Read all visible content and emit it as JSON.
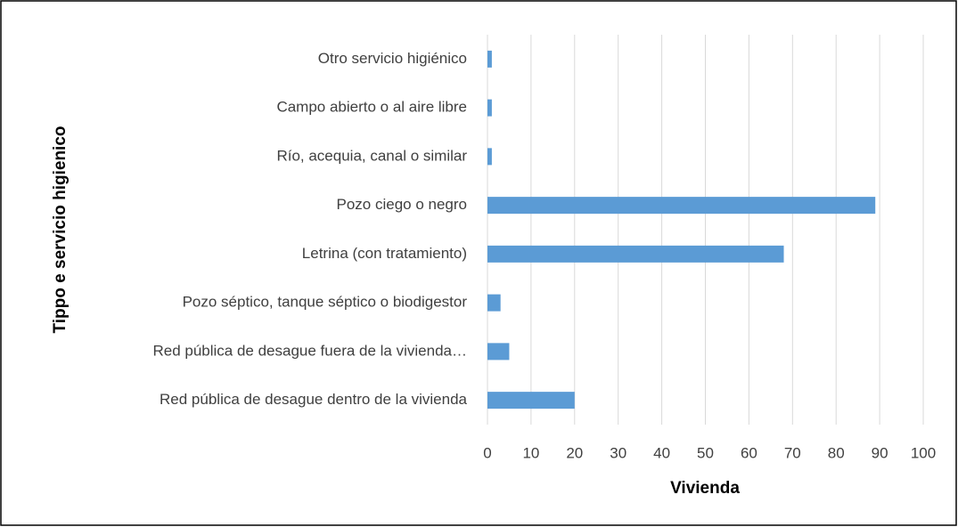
{
  "chart_data": {
    "type": "barh",
    "xlabel": "Vivienda",
    "ylabel": "Tippo e servicio higienico",
    "categories": [
      "Red pública de desague dentro de la vivienda",
      "Red pública de desague fuera de la vivienda…",
      "Pozo séptico, tanque séptico o biodigestor",
      "Letrina (con tratamiento)",
      "Pozo ciego o negro",
      "Río, acequia, canal o similar",
      "Campo abierto o al aire libre",
      "Otro servicio higiénico"
    ],
    "values": [
      20,
      5,
      3,
      68,
      89,
      1,
      1,
      1
    ],
    "color": "#5b9bd5",
    "xlim": [
      0,
      100
    ],
    "xticks": [
      0,
      10,
      20,
      30,
      40,
      50,
      60,
      70,
      80,
      90,
      100
    ],
    "grid": true
  }
}
